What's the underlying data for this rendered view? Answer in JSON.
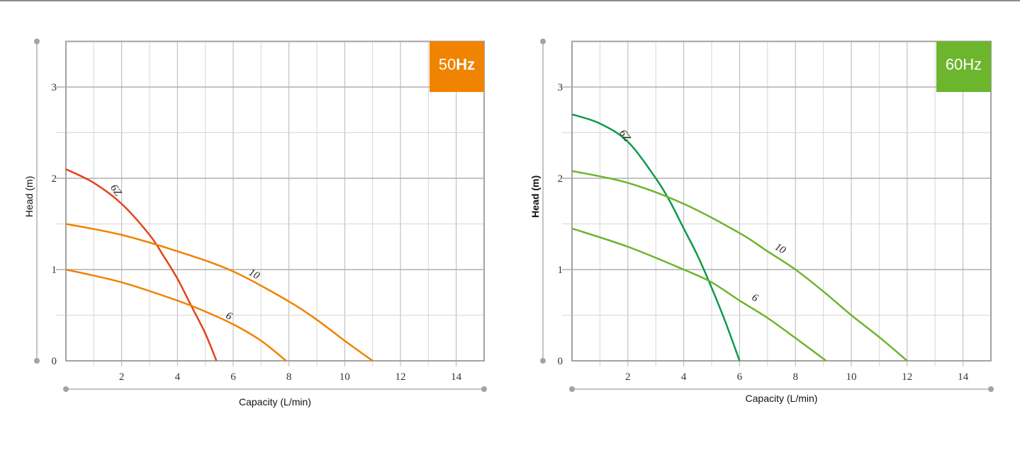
{
  "chart_data": [
    {
      "type": "line",
      "title": "50Hz",
      "badge_color": "#F08300",
      "xlabel": "Capacity (L/min)",
      "ylabel": "Head (m)",
      "xlim": [
        0,
        15
      ],
      "ylim": [
        0,
        3.5
      ],
      "x_ticks": [
        2,
        4,
        6,
        8,
        10,
        12,
        14
      ],
      "y_ticks": [
        0,
        1,
        2,
        3
      ],
      "grid": true,
      "series": [
        {
          "name": "6Z",
          "color": "#E2441C",
          "points": [
            [
              0,
              2.1
            ],
            [
              1,
              1.95
            ],
            [
              2,
              1.72
            ],
            [
              3,
              1.38
            ],
            [
              3.5,
              1.15
            ],
            [
              4,
              0.9
            ],
            [
              4.5,
              0.6
            ],
            [
              5,
              0.3
            ],
            [
              5.4,
              0
            ]
          ]
        },
        {
          "name": "10",
          "color": "#F08300",
          "points": [
            [
              0,
              1.5
            ],
            [
              2,
              1.38
            ],
            [
              4,
              1.2
            ],
            [
              6,
              0.98
            ],
            [
              8,
              0.65
            ],
            [
              9,
              0.45
            ],
            [
              10,
              0.22
            ],
            [
              11,
              0
            ]
          ]
        },
        {
          "name": "6",
          "color": "#F08300",
          "points": [
            [
              0,
              1.0
            ],
            [
              2,
              0.86
            ],
            [
              4,
              0.66
            ],
            [
              5,
              0.54
            ],
            [
              6,
              0.4
            ],
            [
              7,
              0.22
            ],
            [
              7.9,
              0
            ]
          ]
        }
      ],
      "label_positions": {
        "6Z": [
          1.7,
          1.85,
          55
        ],
        "10": [
          6.7,
          0.92,
          28
        ],
        "6": [
          5.8,
          0.46,
          25
        ]
      }
    },
    {
      "type": "line",
      "title": "60Hz",
      "badge_color": "#6DB52D",
      "xlabel": "Capacity (L/min)",
      "ylabel": "Head (m)",
      "xlim": [
        0,
        15
      ],
      "ylim": [
        0,
        3.5
      ],
      "x_ticks": [
        2,
        4,
        6,
        8,
        10,
        12,
        14
      ],
      "y_ticks": [
        0,
        1,
        2,
        3
      ],
      "grid": true,
      "series": [
        {
          "name": "6Z",
          "color": "#0E9A4A",
          "points": [
            [
              0,
              2.7
            ],
            [
              1,
              2.6
            ],
            [
              2,
              2.4
            ],
            [
              3,
              2.0
            ],
            [
              3.5,
              1.75
            ],
            [
              4,
              1.45
            ],
            [
              4.5,
              1.15
            ],
            [
              5,
              0.8
            ],
            [
              5.5,
              0.42
            ],
            [
              6,
              0
            ]
          ]
        },
        {
          "name": "10",
          "color": "#6DB52D",
          "points": [
            [
              0,
              2.08
            ],
            [
              2,
              1.95
            ],
            [
              4,
              1.72
            ],
            [
              6,
              1.4
            ],
            [
              7,
              1.2
            ],
            [
              8,
              1.0
            ],
            [
              9,
              0.76
            ],
            [
              10,
              0.5
            ],
            [
              11,
              0.26
            ],
            [
              12,
              0
            ]
          ]
        },
        {
          "name": "6",
          "color": "#6DB52D",
          "points": [
            [
              0,
              1.45
            ],
            [
              2,
              1.25
            ],
            [
              4,
              1.0
            ],
            [
              5,
              0.86
            ],
            [
              6,
              0.66
            ],
            [
              7,
              0.47
            ],
            [
              8,
              0.25
            ],
            [
              9.1,
              0
            ]
          ]
        }
      ],
      "label_positions": {
        "6Z": [
          1.8,
          2.45,
          55
        ],
        "10": [
          7.4,
          1.2,
          30
        ],
        "6": [
          6.5,
          0.66,
          28
        ]
      }
    }
  ]
}
